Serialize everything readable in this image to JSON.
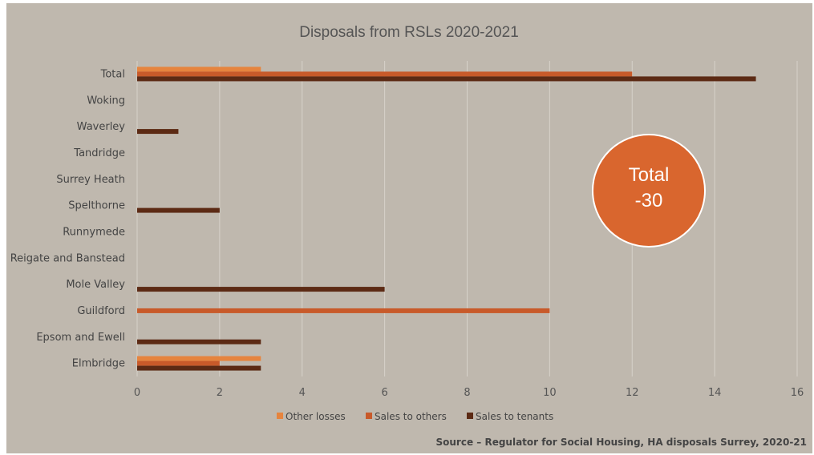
{
  "chart_data": {
    "type": "bar",
    "orientation": "horizontal",
    "title": "Disposals from RSLs 2020-2021",
    "categories": [
      "Total",
      "Woking",
      "Waverley",
      "Tandridge",
      "Surrey Heath",
      "Spelthorne",
      "Runnymede",
      "Reigate and Banstead",
      "Mole Valley",
      "Guildford",
      "Epsom and Ewell",
      "Elmbridge"
    ],
    "series": [
      {
        "name": "Other losses",
        "color": "#e6843e",
        "values": [
          3,
          0,
          0,
          0,
          0,
          0,
          0,
          0,
          0,
          0,
          0,
          3
        ]
      },
      {
        "name": "Sales to others",
        "color": "#c85a2a",
        "values": [
          12,
          0,
          0,
          0,
          0,
          0,
          0,
          0,
          0,
          10,
          0,
          2
        ]
      },
      {
        "name": "Sales to tenants",
        "color": "#5c2a14",
        "values": [
          15,
          0,
          1,
          0,
          0,
          2,
          0,
          0,
          6,
          0,
          3,
          3
        ]
      }
    ],
    "xlim": [
      0,
      16
    ],
    "xticks": [
      0,
      2,
      4,
      6,
      8,
      10,
      12,
      14,
      16
    ],
    "grid": "vertical",
    "legend": "bottom",
    "annotation": {
      "line1": "Total",
      "line2": "-30",
      "color": "#d9662e"
    },
    "source": "Source – Regulator for Social Housing, HA disposals Surrey, 2020-21"
  }
}
